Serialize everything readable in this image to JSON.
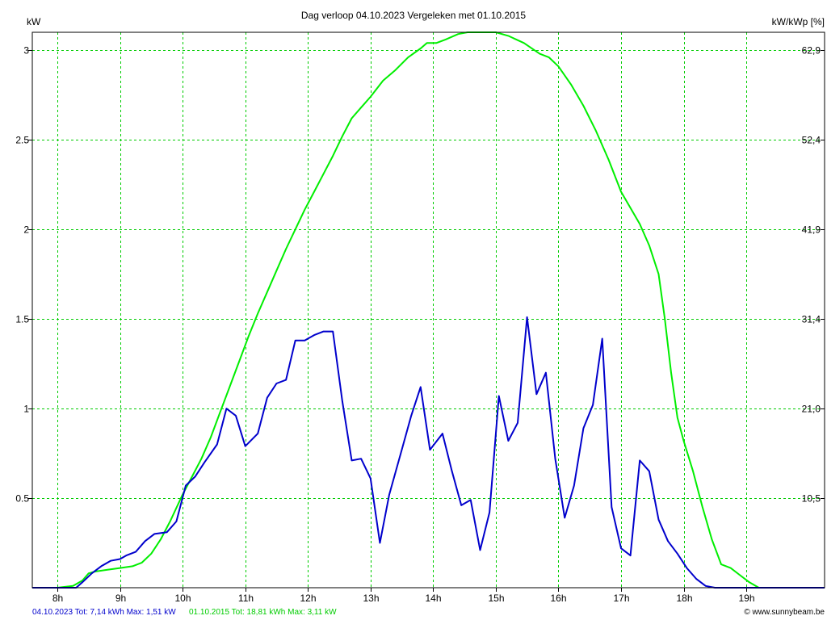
{
  "title": "Dag  verloop 04.10.2023   Vergeleken met 01.10.2015",
  "axis_left_label": "kW",
  "axis_right_label": "kW/kWp [%]",
  "legend": {
    "a": {
      "text": "04.10.2023 Tot: 7,14 kWh Max: 1,51 kW",
      "color": "#0000cc"
    },
    "b": {
      "text": "01.10.2015 Tot: 18,81 kWh Max: 3,11 kW",
      "color": "#00cc00"
    }
  },
  "credit": "© www.sunnybeam.be",
  "chart_data": {
    "type": "line",
    "xlabel": "",
    "ylabel": "kW",
    "y2label": "kW/kWp [%]",
    "xlim": [
      7.6,
      20.25
    ],
    "ylim": [
      0,
      3.1
    ],
    "x_ticks": [
      8,
      9,
      10,
      11,
      12,
      13,
      14,
      15,
      16,
      17,
      18,
      19
    ],
    "x_tick_labels": [
      "8h",
      "9h",
      "10h",
      "11h",
      "12h",
      "13h",
      "14h",
      "15h",
      "16h",
      "17h",
      "18h",
      "19h"
    ],
    "y_ticks": [
      0.5,
      1,
      1.5,
      2,
      2.5,
      3
    ],
    "y_tick_labels": [
      "0.5",
      "1",
      "1.5",
      "2",
      "2.5",
      "3"
    ],
    "y2_ticks": [
      0.5,
      1,
      1.5,
      2,
      2.5,
      3
    ],
    "y2_tick_labels": [
      "10,5",
      "21,0",
      "31,4",
      "41,9",
      "52,4",
      "62,9"
    ],
    "grid": true,
    "series": [
      {
        "name": "01.10.2015",
        "color": "#00ee00",
        "points": [
          [
            7.6,
            0
          ],
          [
            8.0,
            0.0
          ],
          [
            8.25,
            0.01
          ],
          [
            8.4,
            0.04
          ],
          [
            8.5,
            0.08
          ],
          [
            8.6,
            0.09
          ],
          [
            8.8,
            0.1
          ],
          [
            9.0,
            0.11
          ],
          [
            9.2,
            0.12
          ],
          [
            9.35,
            0.14
          ],
          [
            9.5,
            0.19
          ],
          [
            9.65,
            0.27
          ],
          [
            9.8,
            0.37
          ],
          [
            10.0,
            0.52
          ],
          [
            10.15,
            0.62
          ],
          [
            10.3,
            0.72
          ],
          [
            10.45,
            0.84
          ],
          [
            10.6,
            0.98
          ],
          [
            10.75,
            1.12
          ],
          [
            10.9,
            1.26
          ],
          [
            11.05,
            1.4
          ],
          [
            11.2,
            1.53
          ],
          [
            11.35,
            1.65
          ],
          [
            11.5,
            1.77
          ],
          [
            11.65,
            1.89
          ],
          [
            11.8,
            2.0
          ],
          [
            11.95,
            2.11
          ],
          [
            12.1,
            2.21
          ],
          [
            12.25,
            2.31
          ],
          [
            12.4,
            2.41
          ],
          [
            12.55,
            2.52
          ],
          [
            12.7,
            2.62
          ],
          [
            12.85,
            2.68
          ],
          [
            13.0,
            2.74
          ],
          [
            13.2,
            2.83
          ],
          [
            13.4,
            2.89
          ],
          [
            13.6,
            2.96
          ],
          [
            13.8,
            3.01
          ],
          [
            13.9,
            3.04
          ],
          [
            14.05,
            3.04
          ],
          [
            14.2,
            3.06
          ],
          [
            14.4,
            3.09
          ],
          [
            14.55,
            3.11
          ],
          [
            14.75,
            3.11
          ],
          [
            15.0,
            3.11
          ],
          [
            15.2,
            3.08
          ],
          [
            15.45,
            3.04
          ],
          [
            15.7,
            2.98
          ],
          [
            15.85,
            2.96
          ],
          [
            16.0,
            2.91
          ],
          [
            16.2,
            2.81
          ],
          [
            16.4,
            2.69
          ],
          [
            16.6,
            2.55
          ],
          [
            16.8,
            2.39
          ],
          [
            17.0,
            2.21
          ],
          [
            17.15,
            2.12
          ],
          [
            17.3,
            2.03
          ],
          [
            17.45,
            1.91
          ],
          [
            17.6,
            1.75
          ],
          [
            17.7,
            1.5
          ],
          [
            17.8,
            1.2
          ],
          [
            17.9,
            0.95
          ],
          [
            18.0,
            0.82
          ],
          [
            18.15,
            0.65
          ],
          [
            18.3,
            0.45
          ],
          [
            18.45,
            0.27
          ],
          [
            18.6,
            0.13
          ],
          [
            18.75,
            0.11
          ],
          [
            18.9,
            0.07
          ],
          [
            19.05,
            0.03
          ],
          [
            19.2,
            0.0
          ],
          [
            20.25,
            0.0
          ]
        ]
      },
      {
        "name": "04.10.2023",
        "color": "#0000cc",
        "points": [
          [
            7.6,
            0
          ],
          [
            8.3,
            0.0
          ],
          [
            8.4,
            0.03
          ],
          [
            8.55,
            0.08
          ],
          [
            8.7,
            0.12
          ],
          [
            8.85,
            0.15
          ],
          [
            9.0,
            0.16
          ],
          [
            9.1,
            0.18
          ],
          [
            9.25,
            0.2
          ],
          [
            9.4,
            0.26
          ],
          [
            9.55,
            0.3
          ],
          [
            9.75,
            0.31
          ],
          [
            9.9,
            0.37
          ],
          [
            10.05,
            0.57
          ],
          [
            10.2,
            0.62
          ],
          [
            10.35,
            0.7
          ],
          [
            10.55,
            0.8
          ],
          [
            10.7,
            1.0
          ],
          [
            10.85,
            0.96
          ],
          [
            11.0,
            0.79
          ],
          [
            11.2,
            0.86
          ],
          [
            11.35,
            1.06
          ],
          [
            11.5,
            1.14
          ],
          [
            11.65,
            1.16
          ],
          [
            11.8,
            1.38
          ],
          [
            11.95,
            1.38
          ],
          [
            12.1,
            1.41
          ],
          [
            12.25,
            1.43
          ],
          [
            12.4,
            1.43
          ],
          [
            12.55,
            1.04
          ],
          [
            12.7,
            0.71
          ],
          [
            12.85,
            0.72
          ],
          [
            13.0,
            0.61
          ],
          [
            13.15,
            0.25
          ],
          [
            13.3,
            0.52
          ],
          [
            13.5,
            0.77
          ],
          [
            13.65,
            0.96
          ],
          [
            13.8,
            1.12
          ],
          [
            13.95,
            0.77
          ],
          [
            14.15,
            0.86
          ],
          [
            14.3,
            0.65
          ],
          [
            14.45,
            0.46
          ],
          [
            14.6,
            0.49
          ],
          [
            14.75,
            0.21
          ],
          [
            14.9,
            0.42
          ],
          [
            15.05,
            1.07
          ],
          [
            15.2,
            0.82
          ],
          [
            15.35,
            0.92
          ],
          [
            15.5,
            1.51
          ],
          [
            15.65,
            1.08
          ],
          [
            15.8,
            1.2
          ],
          [
            15.95,
            0.72
          ],
          [
            16.1,
            0.39
          ],
          [
            16.25,
            0.57
          ],
          [
            16.4,
            0.89
          ],
          [
            16.55,
            1.02
          ],
          [
            16.7,
            1.39
          ],
          [
            16.85,
            0.45
          ],
          [
            17.0,
            0.22
          ],
          [
            17.15,
            0.18
          ],
          [
            17.3,
            0.71
          ],
          [
            17.45,
            0.65
          ],
          [
            17.6,
            0.38
          ],
          [
            17.75,
            0.26
          ],
          [
            17.9,
            0.19
          ],
          [
            18.05,
            0.11
          ],
          [
            18.2,
            0.05
          ],
          [
            18.35,
            0.01
          ],
          [
            18.5,
            0.0
          ],
          [
            20.25,
            0.0
          ]
        ]
      }
    ]
  }
}
